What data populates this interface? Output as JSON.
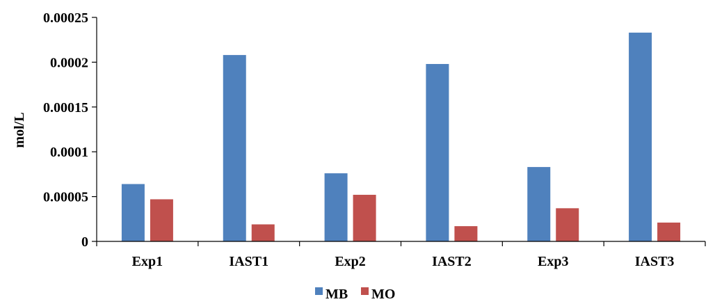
{
  "chart_data": {
    "type": "bar",
    "title": "",
    "xlabel": "",
    "ylabel": "mol/L",
    "categories": [
      "Exp1",
      "IAST1",
      "Exp2",
      "IAST2",
      "Exp3",
      "IAST3"
    ],
    "series": [
      {
        "name": "MB",
        "color": "#4F81BD",
        "values": [
          6.4e-05,
          0.000208,
          7.6e-05,
          0.000198,
          8.3e-05,
          0.000233
        ]
      },
      {
        "name": "MO",
        "color": "#C0504D",
        "values": [
          4.7e-05,
          1.9e-05,
          5.2e-05,
          1.7e-05,
          3.7e-05,
          2.1e-05
        ]
      }
    ],
    "ylim": [
      0,
      0.00025
    ],
    "yticks": [
      "0",
      "0.00005",
      "0.0001",
      "0.00015",
      "0.0002",
      "0.00025"
    ],
    "grid": false,
    "legend_position": "bottom-center"
  }
}
